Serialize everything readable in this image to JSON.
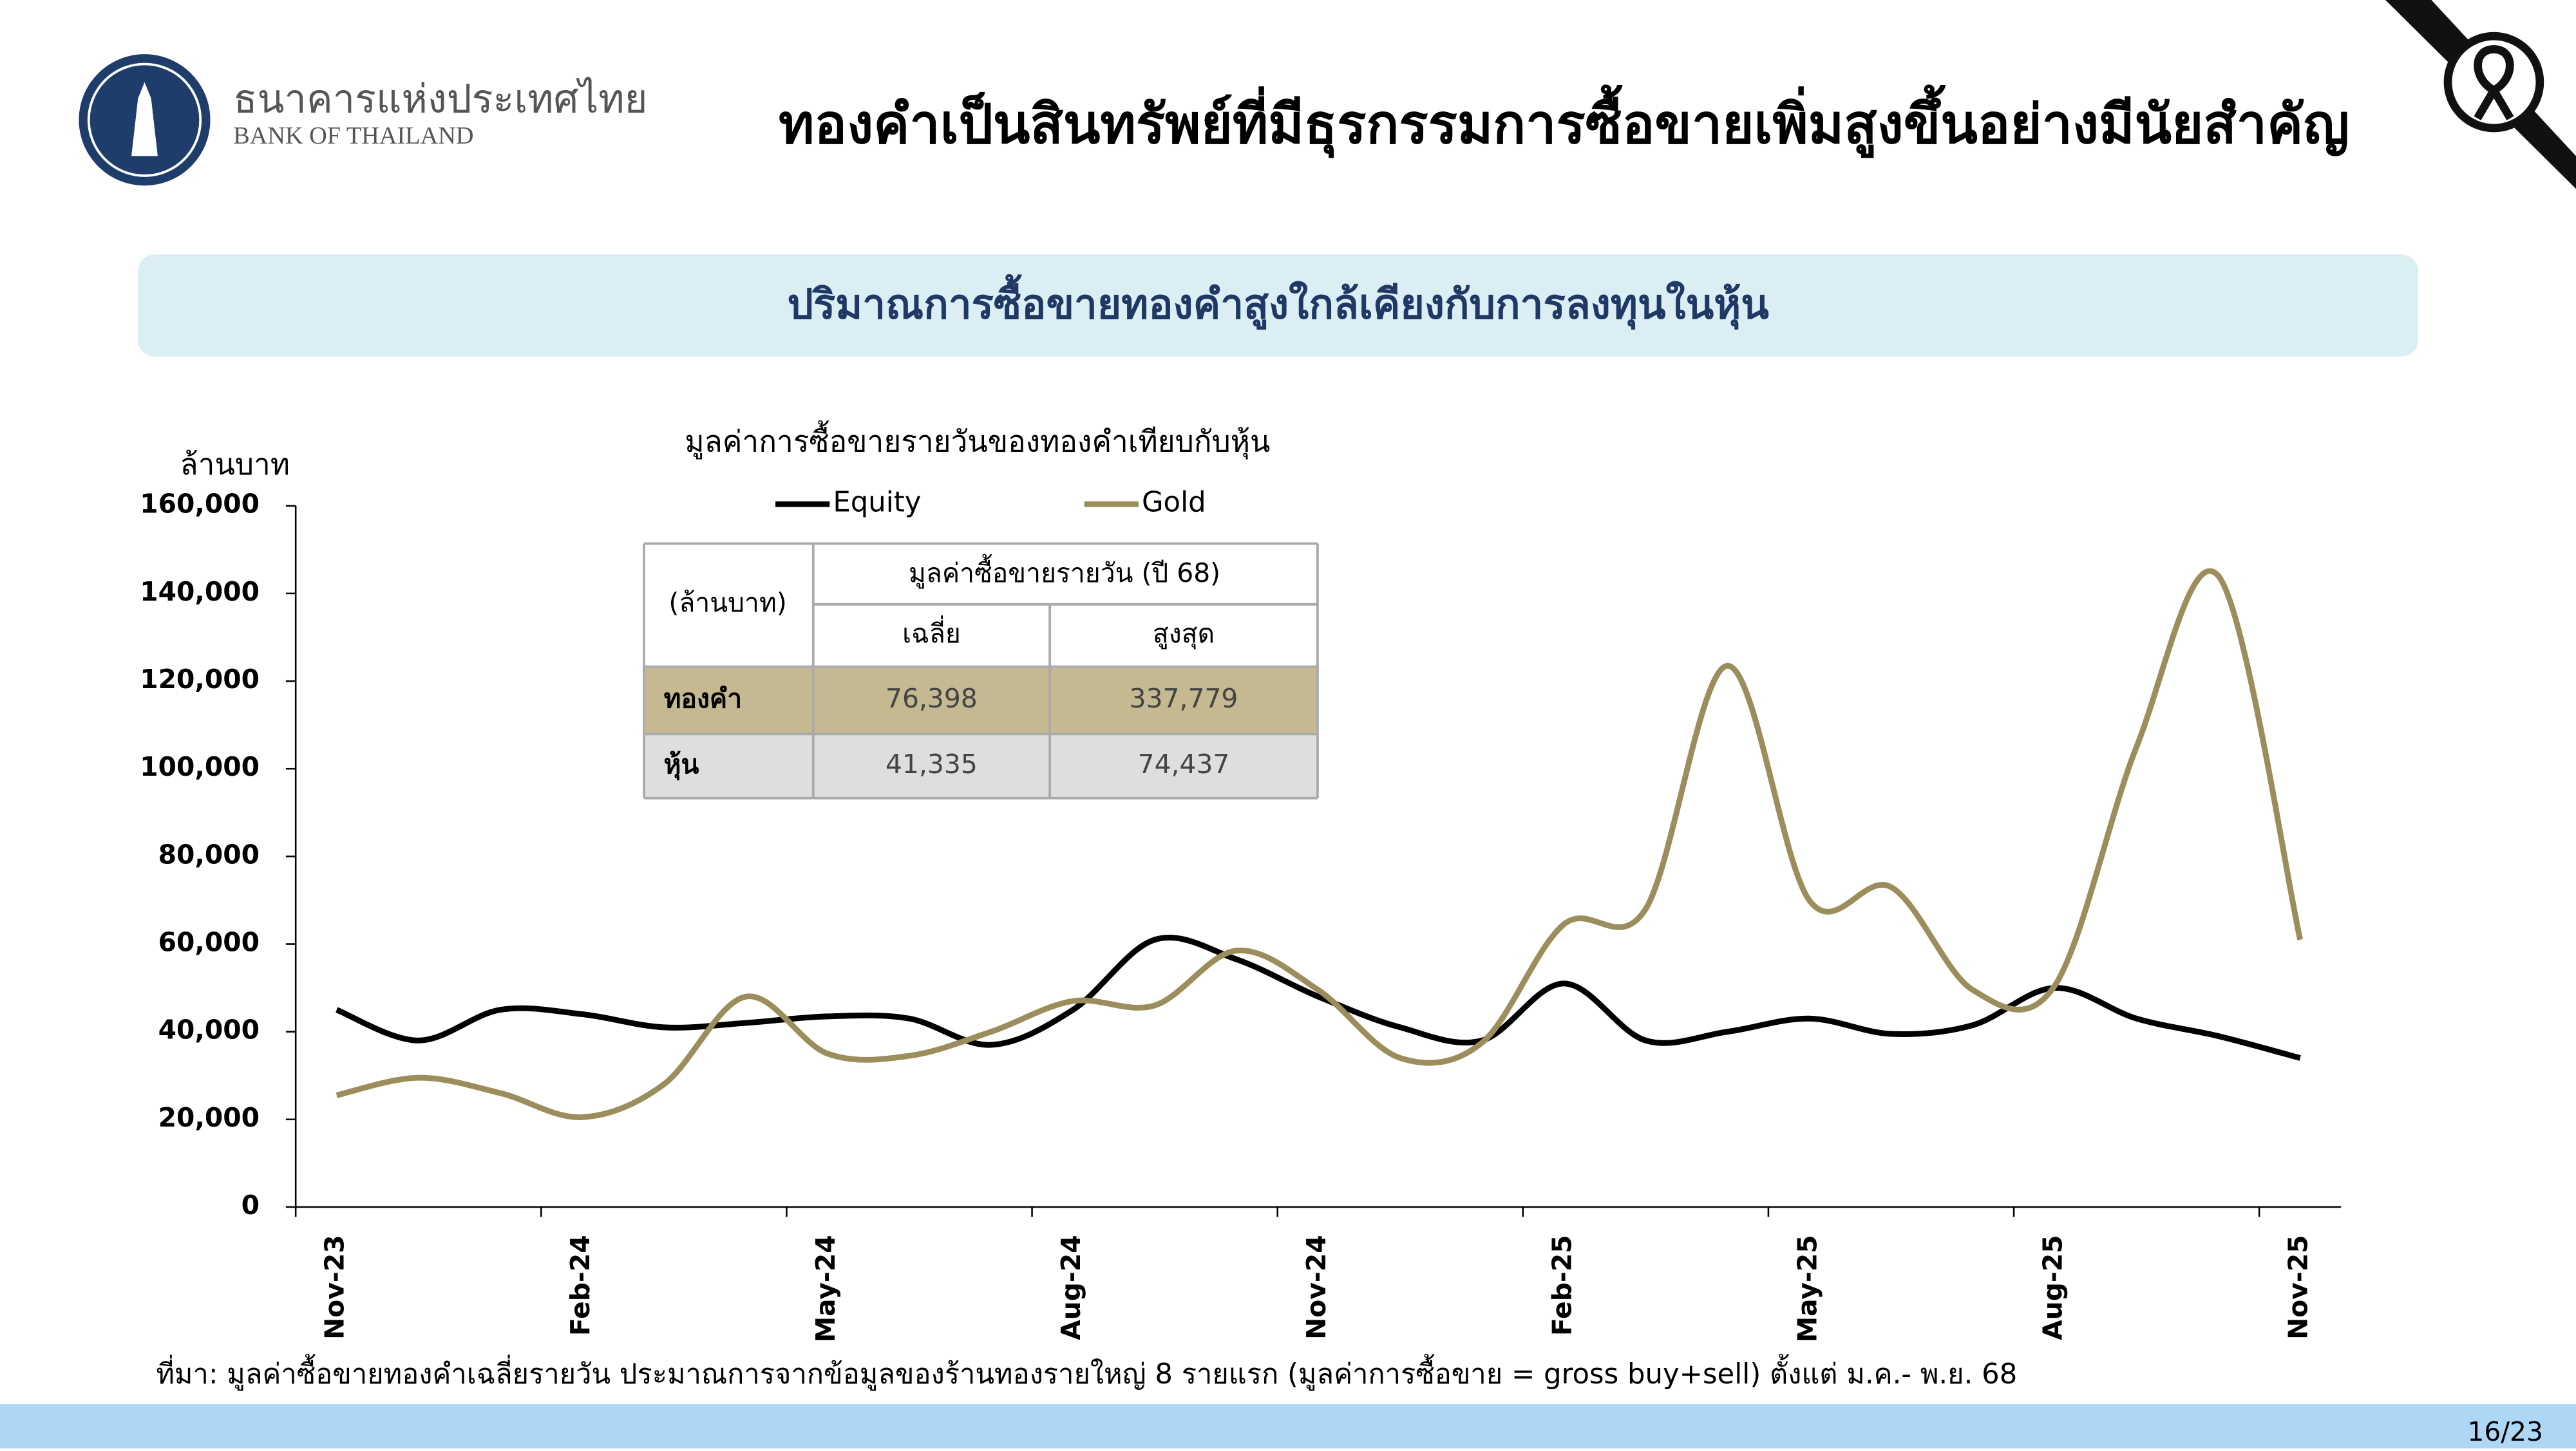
{
  "header": {
    "logo_th": "ธนาคารแห่งประเทศไทย",
    "logo_en": "BANK OF THAILAND",
    "title": "ทองคำเป็นสินทรัพย์ที่มีธุรกรรมการซื้อขายเพิ่มสูงขึ้นอย่างมีนัยสำคัญ",
    "subtitle": "ปริมาณการซื้อขายทองคำสูงใกล้เคียงกับการลงทุนในหุ้น"
  },
  "chart_data": {
    "type": "line",
    "title": "มูลค่าการซื้อขายรายวันของทองคำเทียบกับหุ้น",
    "y_label": "ล้านบาท",
    "categories": [
      "Nov-23",
      null,
      null,
      "Feb-24",
      null,
      null,
      "May-24",
      null,
      null,
      "Aug-24",
      null,
      null,
      "Nov-24",
      null,
      null,
      "Feb-25",
      null,
      null,
      "May-25",
      null,
      null,
      "Aug-25",
      null,
      null,
      "Nov-25"
    ],
    "series": [
      {
        "name": "Equity",
        "color": "#000000",
        "values": [
          45000,
          38000,
          45000,
          44000,
          41000,
          42000,
          43500,
          43000,
          37000,
          45000,
          61000,
          56500,
          48000,
          41000,
          38000,
          51000,
          38000,
          40000,
          43000,
          39500,
          41500,
          50000,
          43000,
          39000,
          34000
        ]
      },
      {
        "name": "Gold",
        "color": "#9b8e5c",
        "values": [
          25500,
          29500,
          26000,
          20500,
          28000,
          48000,
          35000,
          34500,
          40000,
          47000,
          46000,
          58500,
          49500,
          34000,
          37500,
          64500,
          68000,
          123500,
          70000,
          73000,
          49500,
          50500,
          105000,
          144000,
          61000
        ]
      }
    ],
    "ylim": [
      0,
      160000
    ],
    "yticks": [
      0,
      {
        "value": 20000,
        "label": "20,000"
      },
      {
        "value": 40000,
        "label": "40,000"
      },
      {
        "value": 60000,
        "label": "60,000"
      },
      {
        "value": 80000,
        "label": "80,000"
      },
      {
        "value": 100000,
        "label": "100,000"
      },
      {
        "value": 120000,
        "label": "120,000"
      },
      {
        "value": 140000,
        "label": "140,000"
      },
      {
        "value": 160000,
        "label": "160,000"
      }
    ],
    "legend": "top",
    "grid": false
  },
  "table": {
    "corner": "(ล้านบาท)",
    "group": "มูลค่าซื้อขายรายวัน (ปี 68)",
    "columns": [
      "เฉลี่ย",
      "สูงสุด"
    ],
    "rows": [
      [
        "ทองคำ",
        "76,398",
        "337,779"
      ],
      [
        "หุ้น",
        "41,335",
        "74,437"
      ]
    ]
  },
  "footnote": "ที่มา: มูลค่าซื้อขายทองคำเฉลี่ยรายวัน ประมาณการจากข้อมูลของร้านทองรายใหญ่ 8 รายแรก (มูลค่าการซื้อขาย = gross buy+sell) ตั้งแต่ ม.ค.- พ.ย. 68",
  "page": "16/23"
}
